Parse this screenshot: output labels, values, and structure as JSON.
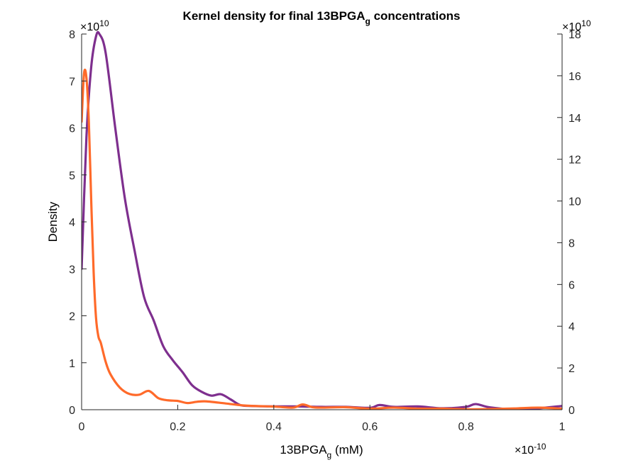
{
  "chart_data": {
    "type": "line",
    "title": "Kernel density for final 13BPGA",
    "title_sub": "g",
    "title_end": " concentrations",
    "xlabel": "13BPGA",
    "xlabel_sub": "g",
    "xlabel_end": " (mM)",
    "ylabel": "Density",
    "x_exponent_base": "×10",
    "x_exponent_power": "-10",
    "y_left_exponent_base": "×10",
    "y_left_exponent_power": "10",
    "y_right_exponent_base": "×10",
    "y_right_exponent_power": "10",
    "xlim": [
      0,
      1
    ],
    "ylim_left": [
      0,
      8
    ],
    "ylim_right": [
      0,
      18
    ],
    "x_ticks": [
      "0",
      "0.2",
      "0.4",
      "0.6",
      "0.8",
      "1"
    ],
    "y_left_ticks": [
      "0",
      "1",
      "2",
      "3",
      "4",
      "5",
      "6",
      "7",
      "8"
    ],
    "y_right_ticks": [
      "0",
      "2",
      "4",
      "6",
      "8",
      "10",
      "12",
      "14",
      "16",
      "18"
    ],
    "grid": false,
    "series": [
      {
        "axis": "left",
        "color": "#7E2F8E",
        "x": [
          0.0,
          0.01,
          0.02,
          0.03,
          0.037,
          0.05,
          0.07,
          0.09,
          0.11,
          0.13,
          0.15,
          0.17,
          0.19,
          0.21,
          0.23,
          0.25,
          0.27,
          0.29,
          0.31,
          0.33,
          0.35,
          0.4,
          0.45,
          0.5,
          0.55,
          0.6,
          0.62,
          0.65,
          0.7,
          0.75,
          0.8,
          0.82,
          0.85,
          0.9,
          0.95,
          1.0
        ],
        "y": [
          3.0,
          5.8,
          7.3,
          7.95,
          8.0,
          7.6,
          6.0,
          4.5,
          3.4,
          2.4,
          1.9,
          1.35,
          1.05,
          0.8,
          0.52,
          0.38,
          0.3,
          0.33,
          0.22,
          0.1,
          0.08,
          0.07,
          0.07,
          0.06,
          0.06,
          0.04,
          0.1,
          0.06,
          0.07,
          0.03,
          0.06,
          0.12,
          0.05,
          0.01,
          0.03,
          0.08
        ]
      },
      {
        "axis": "right",
        "color": "#FF6A2A",
        "x": [
          0.0,
          0.005,
          0.01,
          0.015,
          0.02,
          0.025,
          0.03,
          0.035,
          0.04,
          0.05,
          0.06,
          0.08,
          0.1,
          0.12,
          0.14,
          0.16,
          0.18,
          0.2,
          0.22,
          0.24,
          0.26,
          0.3,
          0.34,
          0.4,
          0.44,
          0.46,
          0.48,
          0.5,
          0.55,
          0.6,
          0.65,
          0.7,
          0.75,
          0.8,
          0.85,
          0.9,
          0.95,
          1.0
        ],
        "y": [
          13.8,
          16.1,
          15.9,
          13.8,
          10.0,
          6.6,
          4.4,
          3.5,
          3.2,
          2.3,
          1.7,
          1.05,
          0.75,
          0.72,
          0.9,
          0.55,
          0.45,
          0.42,
          0.32,
          0.38,
          0.4,
          0.3,
          0.2,
          0.15,
          0.1,
          0.25,
          0.12,
          0.1,
          0.12,
          0.05,
          0.1,
          0.05,
          0.05,
          0.02,
          0.03,
          0.06,
          0.1,
          0.05
        ]
      }
    ]
  }
}
